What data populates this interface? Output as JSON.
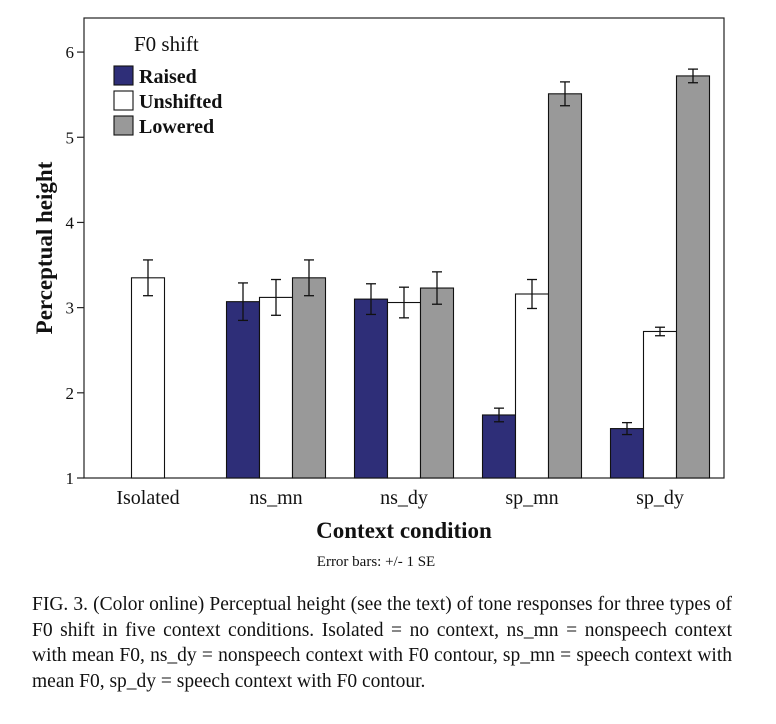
{
  "chart_data": {
    "type": "bar",
    "title": "",
    "xlabel": "Context condition",
    "ylabel": "Perceptual height",
    "note": "Error bars: +/- 1 SE",
    "ylim": [
      1,
      6.4
    ],
    "yticks": [
      "1",
      "2",
      "3",
      "4",
      "5",
      "6"
    ],
    "grid": false,
    "legend": {
      "title": "F0 shift",
      "position": "top-left"
    },
    "categories": [
      "Isolated",
      "ns_mn",
      "ns_dy",
      "sp_mn",
      "sp_dy"
    ],
    "series": [
      {
        "name": "Raised",
        "color": "#2e2e78",
        "values": [
          null,
          3.07,
          3.1,
          1.74,
          1.58
        ],
        "se": [
          null,
          0.22,
          0.18,
          0.08,
          0.07
        ]
      },
      {
        "name": "Unshifted",
        "color": "#ffffff",
        "values": [
          3.35,
          3.12,
          3.06,
          3.16,
          2.72
        ],
        "se": [
          0.21,
          0.21,
          0.18,
          0.17,
          0.05
        ]
      },
      {
        "name": "Lowered",
        "color": "#999999",
        "values": [
          null,
          3.35,
          3.23,
          5.51,
          5.72
        ],
        "se": [
          null,
          0.21,
          0.19,
          0.14,
          0.08
        ]
      }
    ]
  },
  "caption": "FIG. 3. (Color online) Perceptual height (see the text) of tone responses for three types of F0 shift in five context conditions. Isolated = no context, ns_mn = nonspeech context with mean F0, ns_dy = nonspeech context with F0 contour, sp_mn = speech context with mean F0, sp_dy = speech context with F0 contour."
}
